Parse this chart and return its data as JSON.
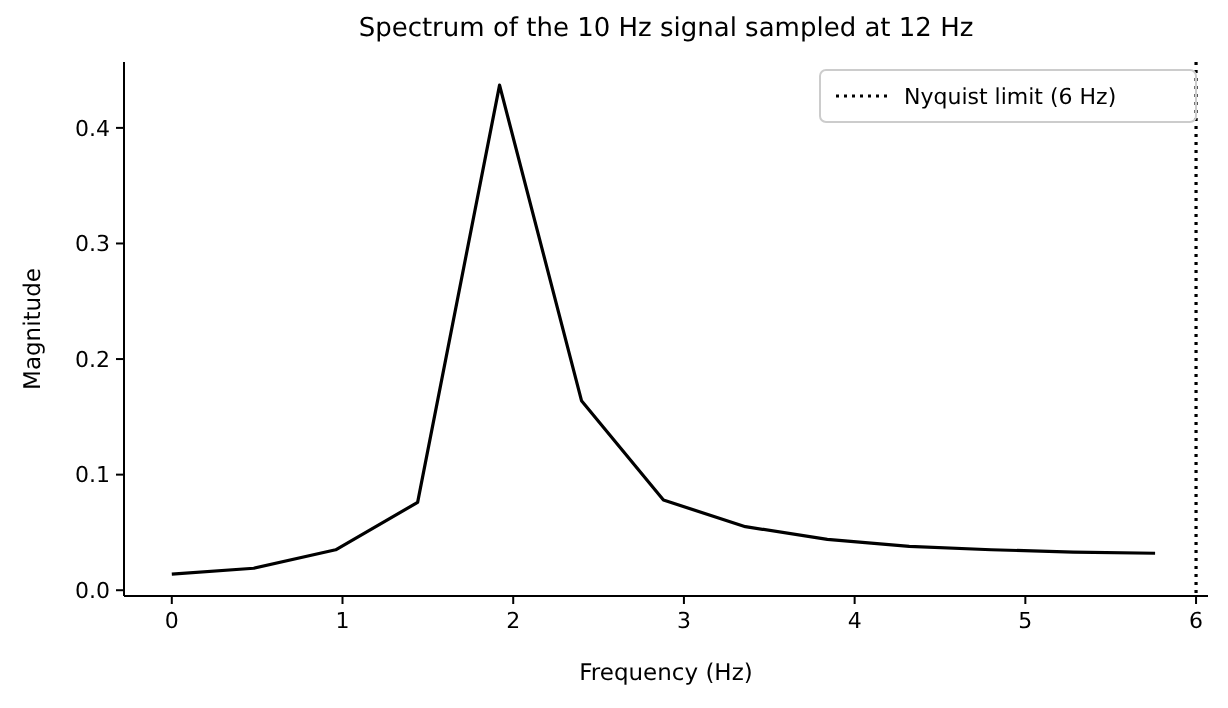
{
  "chart_data": {
    "type": "line",
    "title": "Spectrum of the 10 Hz signal sampled at 12 Hz",
    "xlabel": "Frequency (Hz)",
    "ylabel": "Magnitude",
    "x": [
      0,
      0.48,
      0.96,
      1.44,
      1.92,
      2.4,
      2.88,
      3.36,
      3.84,
      4.32,
      4.8,
      5.28,
      5.76
    ],
    "series": [
      {
        "color": "#000000",
        "values": [
          0.014,
          0.019,
          0.035,
          0.076,
          0.437,
          0.164,
          0.078,
          0.055,
          0.044,
          0.038,
          0.035,
          0.033,
          0.032
        ]
      }
    ],
    "xlim": [
      -0.28,
      6.07
    ],
    "xticks": [
      0,
      1,
      2,
      3,
      4,
      5,
      6
    ],
    "ylim": [
      -0.005,
      0.457
    ],
    "yticks": [
      {
        "value": 0,
        "label": "0.0"
      },
      {
        "value": 0.1,
        "label": "0.1"
      },
      {
        "value": 0.2,
        "label": "0.2"
      },
      {
        "value": 0.3,
        "label": "0.3"
      },
      {
        "value": 0.4,
        "label": "0.4"
      }
    ],
    "ref_lines": [
      {
        "axis": "x",
        "value": 6,
        "label": "Nyquist limit (6 Hz)",
        "color": "#000000",
        "line_style": "dotted"
      }
    ],
    "grid": false,
    "legend": "top right",
    "line_style": "solid",
    "marker": "none"
  }
}
